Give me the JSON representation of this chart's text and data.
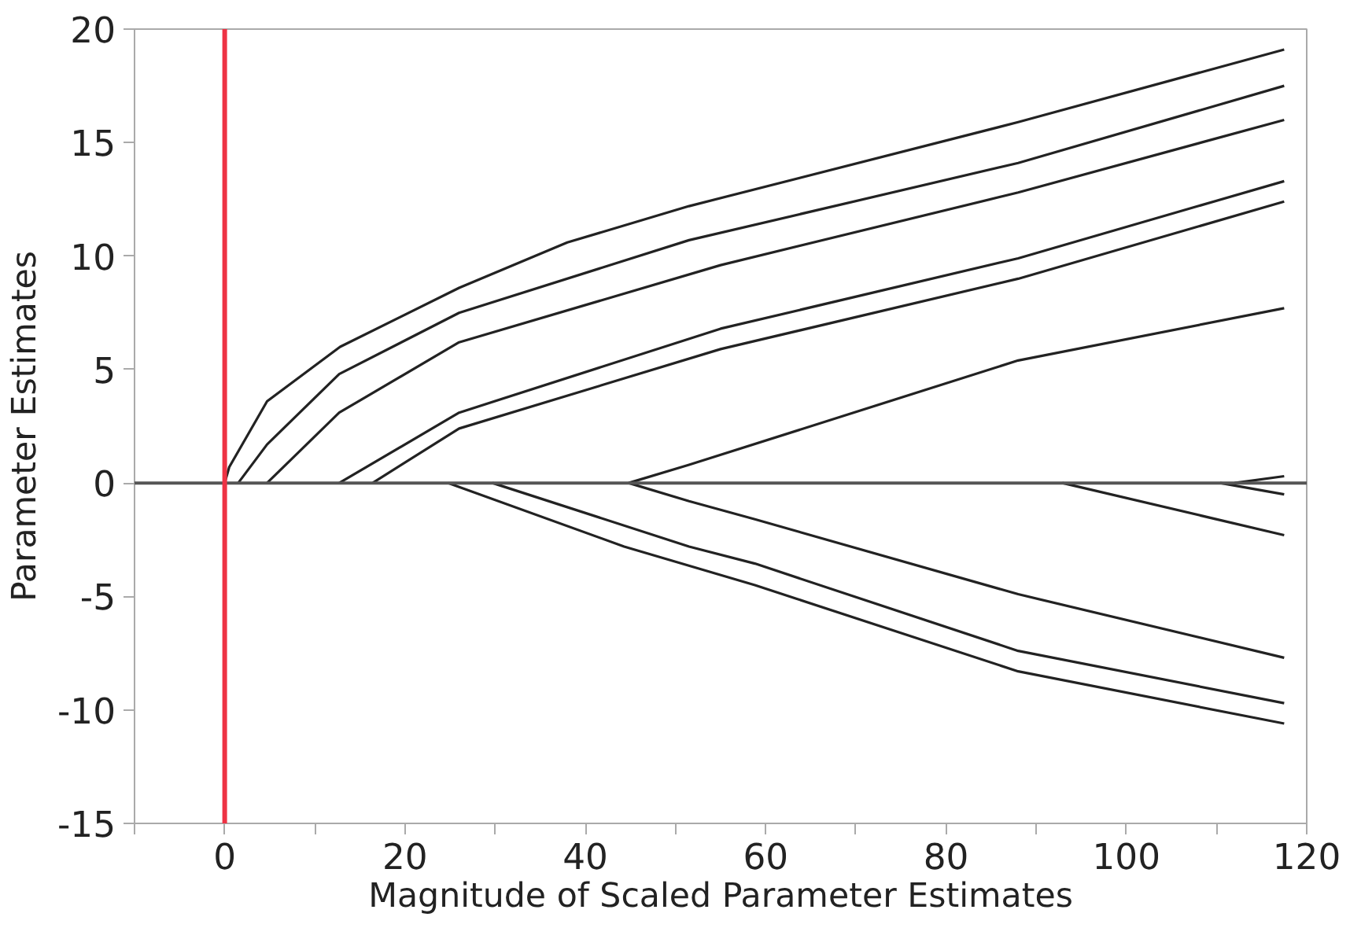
{
  "chart_data": {
    "type": "line",
    "xlabel": "Magnitude of Scaled Parameter Estimates",
    "ylabel": "Parameter Estimates",
    "xlim": [
      -10,
      120
    ],
    "ylim": [
      -15,
      20
    ],
    "xticks": [
      {
        "value": -10,
        "label": null
      },
      0,
      {
        "value": 10,
        "label": null
      },
      20,
      {
        "value": 30,
        "label": null
      },
      40,
      {
        "value": 50,
        "label": null
      },
      60,
      {
        "value": 70,
        "label": null
      },
      80,
      {
        "value": 90,
        "label": null
      },
      100,
      {
        "value": 110,
        "label": null
      },
      120
    ],
    "yticks": [
      -15,
      -10,
      -5,
      0,
      5,
      10,
      15,
      20
    ],
    "grid": false,
    "marker": "none",
    "line_style": "solid",
    "ref_lines": [
      {
        "axis": "y",
        "value": 0,
        "color": "#555555"
      },
      {
        "axis": "x",
        "value": 0,
        "color": "#ee3344"
      }
    ],
    "series": [
      {
        "color": "#222222",
        "x": [
          0,
          0.5,
          4.7,
          12.8,
          26,
          38,
          51.5,
          88,
          117.5
        ],
        "values": [
          0,
          0.7,
          3.6,
          6.0,
          8.6,
          10.6,
          12.2,
          15.9,
          19.1
        ]
      },
      {
        "color": "#222222",
        "x": [
          1.5,
          4.7,
          12.7,
          26,
          51.5,
          88,
          117.5
        ],
        "values": [
          0,
          1.7,
          4.8,
          7.5,
          10.7,
          14.1,
          17.5
        ]
      },
      {
        "color": "#222222",
        "x": [
          4.7,
          12.7,
          26,
          55,
          88,
          117.5
        ],
        "values": [
          0,
          3.1,
          6.2,
          9.6,
          12.8,
          16.0
        ]
      },
      {
        "color": "#222222",
        "x": [
          12.7,
          26,
          55,
          88,
          117.5
        ],
        "values": [
          0,
          3.1,
          6.8,
          9.9,
          13.3
        ]
      },
      {
        "color": "#222222",
        "x": [
          16.4,
          26,
          55,
          88,
          117.5
        ],
        "values": [
          0,
          2.4,
          5.9,
          9.0,
          12.4
        ]
      },
      {
        "color": "#222222",
        "x": [
          44.8,
          51.5,
          88,
          117.5
        ],
        "values": [
          0,
          0.8,
          5.4,
          7.7
        ]
      },
      {
        "color": "#222222",
        "x": [
          24.8,
          44.3,
          58.8,
          88,
          117.5
        ],
        "values": [
          0,
          -2.8,
          -4.5,
          -8.3,
          -10.6
        ]
      },
      {
        "color": "#222222",
        "x": [
          29.7,
          51.5,
          58.8,
          88,
          117.5
        ],
        "values": [
          0,
          -2.8,
          -3.55,
          -7.4,
          -9.7
        ]
      },
      {
        "color": "#222222",
        "x": [
          44.8,
          51.5,
          58.8,
          88,
          117.5
        ],
        "values": [
          0,
          -0.8,
          -1.6,
          -4.9,
          -7.7
        ]
      },
      {
        "color": "#222222",
        "x": [
          92.9,
          117.5
        ],
        "values": [
          0,
          -2.3
        ]
      },
      {
        "color": "#222222",
        "x": [
          110.4,
          117.5
        ],
        "values": [
          0,
          -0.5
        ]
      },
      {
        "color": "#222222",
        "x": [
          112,
          117.5
        ],
        "values": [
          0,
          0.3
        ]
      }
    ]
  }
}
